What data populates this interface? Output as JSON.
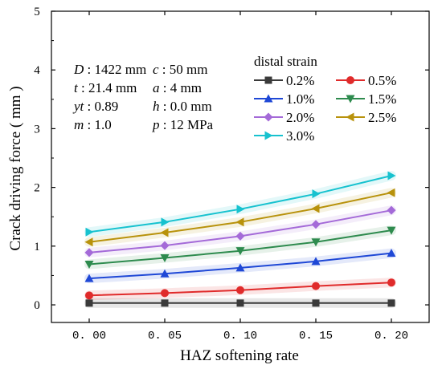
{
  "chart_data": {
    "type": "line",
    "xlabel": "HAZ softening rate",
    "ylabel": "Crack driving force ( mm )",
    "x": [
      0.0,
      0.05,
      0.1,
      0.15,
      0.2
    ],
    "x_tick_labels": [
      "0. 00",
      "0. 05",
      "0. 10",
      "0. 15",
      "0. 20"
    ],
    "xlim": [
      -0.025,
      0.225
    ],
    "y_tick_labels": [
      "0",
      "1",
      "2",
      "3",
      "4",
      "5"
    ],
    "ylim": [
      -0.3,
      5
    ],
    "grid": false,
    "legend_title": "distal strain",
    "legend_placement": "top-right",
    "series": [
      {
        "name": "0.2%",
        "color": "#3a3a3a",
        "marker": "square",
        "values": [
          0.03,
          0.03,
          0.03,
          0.03,
          0.03
        ]
      },
      {
        "name": "0.5%",
        "color": "#e02b2b",
        "marker": "circle",
        "values": [
          0.16,
          0.2,
          0.25,
          0.32,
          0.38
        ]
      },
      {
        "name": "1.0%",
        "color": "#1f48d6",
        "marker": "triangle-up",
        "values": [
          0.45,
          0.53,
          0.63,
          0.74,
          0.88
        ]
      },
      {
        "name": "1.5%",
        "color": "#2e8b4e",
        "marker": "triangle-down",
        "values": [
          0.69,
          0.8,
          0.92,
          1.07,
          1.27
        ]
      },
      {
        "name": "2.0%",
        "color": "#a46ad8",
        "marker": "diamond",
        "values": [
          0.89,
          1.01,
          1.17,
          1.37,
          1.61
        ]
      },
      {
        "name": "2.5%",
        "color": "#b8920c",
        "marker": "triangle-left",
        "values": [
          1.07,
          1.23,
          1.41,
          1.64,
          1.91
        ]
      },
      {
        "name": "3.0%",
        "color": "#17c2cf",
        "marker": "triangle-right",
        "values": [
          1.24,
          1.41,
          1.63,
          1.89,
          2.2
        ]
      }
    ]
  },
  "annotations": [
    {
      "key": "D",
      "value": " : 1422 mm"
    },
    {
      "key": "t",
      "value": " : 21.4 mm"
    },
    {
      "key": "yt",
      "value": " : 0.89"
    },
    {
      "key": "m",
      "value": " : 1.0"
    },
    {
      "key": "c",
      "value": " : 50 mm"
    },
    {
      "key": "a",
      "value": " : 4 mm"
    },
    {
      "key": "h",
      "value": " : 0.0 mm"
    },
    {
      "key": "p",
      "value": " : 12 MPa"
    }
  ]
}
